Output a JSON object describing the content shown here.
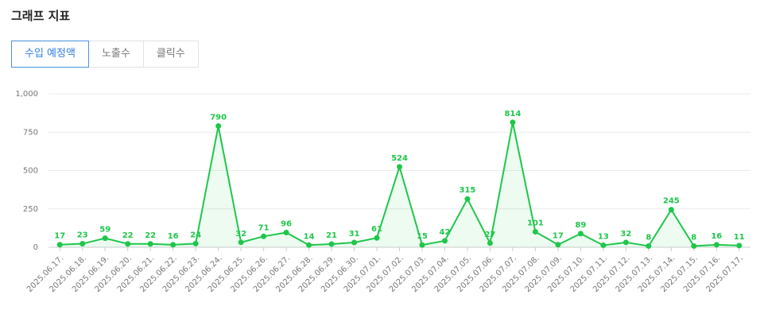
{
  "header": {
    "title": "그래프 지표"
  },
  "tabs": [
    "수입 예정액",
    "노출수",
    "클릭수"
  ],
  "chart_data": {
    "type": "line",
    "categories": [
      "2025.06.17.",
      "2025.06.18.",
      "2025.06.19.",
      "2025.06.20.",
      "2025.06.21.",
      "2025.06.22.",
      "2025.06.23.",
      "2025.06.24.",
      "2025.06.25.",
      "2025.06.26.",
      "2025.06.27.",
      "2025.06.28.",
      "2025.06.29.",
      "2025.06.30.",
      "2025.07.01.",
      "2025.07.02.",
      "2025.07.03.",
      "2025.07.04.",
      "2025.07.05.",
      "2025.07.06.",
      "2025.07.07.",
      "2025.07.08.",
      "2025.07.09.",
      "2025.07.10.",
      "2025.07.11.",
      "2025.07.12.",
      "2025.07.13.",
      "2025.07.14.",
      "2025.07.15.",
      "2025.07.16.",
      "2025.07.17."
    ],
    "values": [
      17,
      23,
      59,
      22,
      22,
      16,
      24,
      790,
      32,
      71,
      96,
      14,
      21,
      31,
      61,
      524,
      15,
      42,
      315,
      27,
      814,
      101,
      17,
      89,
      13,
      32,
      8,
      245,
      8,
      16,
      11
    ],
    "color": "#1ec74a",
    "ylim": [
      0,
      1000
    ],
    "yticks": [
      0,
      250,
      500,
      750,
      {
        "value": 1000,
        "label": "1,000"
      }
    ],
    "grid": true
  }
}
